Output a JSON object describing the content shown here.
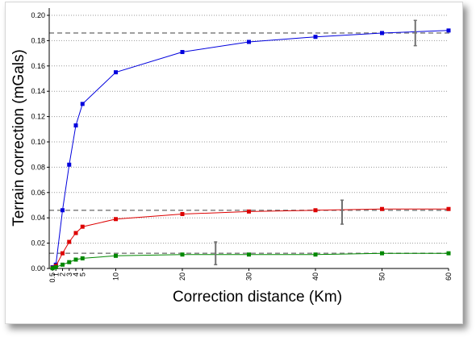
{
  "chart_data": {
    "type": "line",
    "xlabel": "Correction distance (Km)",
    "ylabel": "Terrain correction (mGals)",
    "xlim": [
      0,
      60
    ],
    "ylim": [
      0,
      0.2
    ],
    "x_ticks": [
      0.5,
      1,
      2,
      3,
      4,
      5,
      10,
      20,
      30,
      40,
      50,
      60
    ],
    "x_tick_labels": [
      "0.5",
      "1",
      "2",
      "3",
      "4",
      "5",
      "10",
      "20",
      "30",
      "40",
      "50",
      "60"
    ],
    "y_ticks": [
      0,
      0.02,
      0.04,
      0.06,
      0.08,
      0.1,
      0.12,
      0.14,
      0.16,
      0.18,
      0.2
    ],
    "y_tick_labels": [
      "0.00",
      "0.02",
      "0.04",
      "0.06",
      "0.08",
      "0.10",
      "0.12",
      "0.14",
      "0.16",
      "0.18",
      "0.20"
    ],
    "grid": "horizontal dotted",
    "x": [
      0.5,
      1,
      2,
      3,
      4,
      5,
      10,
      20,
      30,
      40,
      50,
      60
    ],
    "series": [
      {
        "color": "#0000dd",
        "values": [
          0.001,
          0.003,
          0.046,
          0.082,
          0.113,
          0.13,
          0.155,
          0.171,
          0.179,
          0.183,
          0.186,
          0.188
        ]
      },
      {
        "color": "#dd0000",
        "values": [
          0.0005,
          0.002,
          0.012,
          0.021,
          0.028,
          0.033,
          0.039,
          0.043,
          0.045,
          0.046,
          0.047,
          0.047
        ]
      },
      {
        "color": "#008800",
        "values": [
          0.0002,
          0.001,
          0.003,
          0.005,
          0.007,
          0.008,
          0.01,
          0.011,
          0.011,
          0.011,
          0.012,
          0.012
        ]
      }
    ],
    "reference_lines": [
      0.186,
      0.046,
      0.012
    ],
    "error_bars": [
      {
        "x": 55,
        "y": 0.186,
        "low": 0.176,
        "high": 0.196
      },
      {
        "x": 44,
        "y": 0.044,
        "low": 0.035,
        "high": 0.054
      },
      {
        "x": 25,
        "y": 0.012,
        "low": 0.003,
        "high": 0.021
      }
    ]
  }
}
